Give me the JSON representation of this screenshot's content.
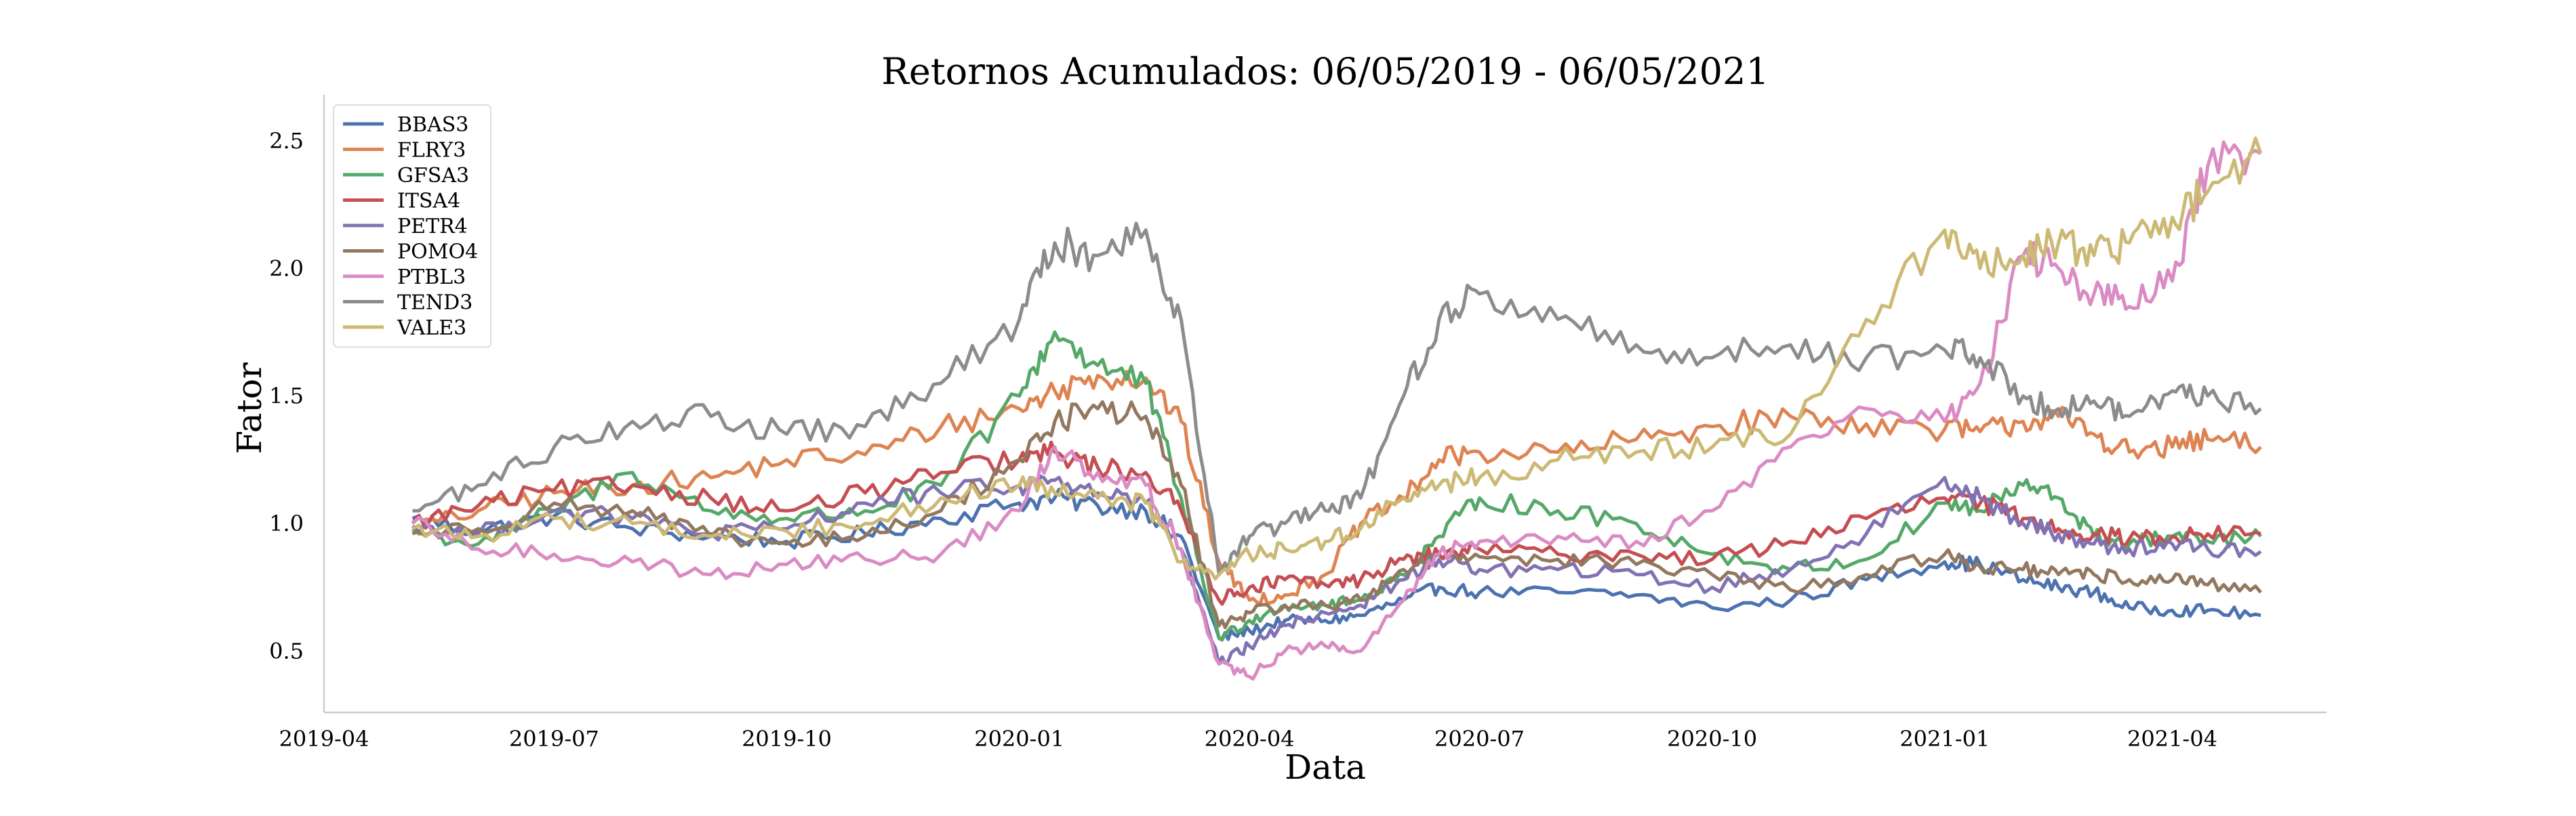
{
  "chart_data": {
    "type": "line",
    "title": "Retornos Acumulados: 06/05/2019 - 06/05/2021",
    "xlabel": "Data",
    "ylabel": "Fator",
    "x_range": [
      "2019-04-01",
      "2021-06-01"
    ],
    "ylim": [
      0.26,
      2.68
    ],
    "x_ticks": [
      {
        "label": "2019-04",
        "date": "2019-04-01"
      },
      {
        "label": "2019-07",
        "date": "2019-07-01"
      },
      {
        "label": "2019-10",
        "date": "2019-10-01"
      },
      {
        "label": "2020-01",
        "date": "2020-01-01"
      },
      {
        "label": "2020-04",
        "date": "2020-04-01"
      },
      {
        "label": "2020-07",
        "date": "2020-07-01"
      },
      {
        "label": "2020-10",
        "date": "2020-10-01"
      },
      {
        "label": "2021-01",
        "date": "2021-01-01"
      },
      {
        "label": "2021-04",
        "date": "2021-04-01"
      }
    ],
    "y_ticks": [
      0.5,
      1.0,
      1.5,
      2.0,
      2.5
    ],
    "grid": false,
    "legend_position": "top-left",
    "x": [
      "2019-05-06",
      "2019-06-01",
      "2019-07-01",
      "2019-08-01",
      "2019-09-01",
      "2019-10-01",
      "2019-11-01",
      "2019-12-01",
      "2020-01-01",
      "2020-01-15",
      "2020-02-01",
      "2020-02-20",
      "2020-03-05",
      "2020-03-20",
      "2020-04-01",
      "2020-04-15",
      "2020-05-01",
      "2020-05-15",
      "2020-06-01",
      "2020-06-15",
      "2020-07-01",
      "2020-08-01",
      "2020-09-01",
      "2020-10-01",
      "2020-11-01",
      "2020-12-01",
      "2021-01-01",
      "2021-01-15",
      "2021-02-01",
      "2021-02-15",
      "2021-03-01",
      "2021-03-15",
      "2021-04-01",
      "2021-04-15",
      "2021-05-06"
    ],
    "series": [
      {
        "name": "BBAS3",
        "color": "#4c72b0",
        "values": [
          1.02,
          0.97,
          1.03,
          0.98,
          0.95,
          0.93,
          0.96,
          1.02,
          1.08,
          1.1,
          1.07,
          1.05,
          0.95,
          0.55,
          0.58,
          0.62,
          0.62,
          0.64,
          0.7,
          0.75,
          0.73,
          0.73,
          0.72,
          0.67,
          0.7,
          0.78,
          0.85,
          0.84,
          0.78,
          0.75,
          0.73,
          0.67,
          0.66,
          0.66,
          0.64
        ]
      },
      {
        "name": "FLRY3",
        "color": "#dd8452",
        "values": [
          0.98,
          1.05,
          1.12,
          1.15,
          1.18,
          1.25,
          1.27,
          1.38,
          1.45,
          1.52,
          1.58,
          1.57,
          1.4,
          0.85,
          0.7,
          0.72,
          0.8,
          1.0,
          1.1,
          1.25,
          1.28,
          1.28,
          1.33,
          1.38,
          1.42,
          1.39,
          1.37,
          1.36,
          1.4,
          1.42,
          1.35,
          1.28,
          1.3,
          1.33,
          1.3
        ]
      },
      {
        "name": "GFSA3",
        "color": "#55a868",
        "values": [
          0.97,
          0.92,
          1.05,
          1.2,
          1.05,
          1.02,
          1.05,
          1.15,
          1.5,
          1.75,
          1.62,
          1.55,
          1.1,
          0.55,
          0.62,
          0.68,
          0.68,
          0.7,
          0.8,
          0.95,
          1.1,
          1.05,
          1.0,
          0.88,
          0.82,
          0.86,
          1.08,
          1.05,
          1.15,
          1.1,
          0.95,
          0.92,
          0.95,
          0.93,
          0.95
        ]
      },
      {
        "name": "ITSA4",
        "color": "#c44e52",
        "values": [
          1.0,
          1.07,
          1.13,
          1.15,
          1.1,
          1.05,
          1.12,
          1.2,
          1.25,
          1.28,
          1.22,
          1.2,
          1.05,
          0.7,
          0.75,
          0.78,
          0.76,
          0.78,
          0.86,
          0.88,
          0.9,
          0.88,
          0.88,
          0.86,
          0.93,
          1.02,
          1.1,
          1.08,
          1.02,
          0.98,
          0.96,
          0.94,
          0.95,
          0.96,
          0.96
        ]
      },
      {
        "name": "PETR4",
        "color": "#8172b3",
        "values": [
          0.99,
          0.96,
          1.05,
          1.02,
          0.96,
          0.98,
          1.08,
          1.12,
          1.15,
          1.17,
          1.12,
          1.08,
          0.9,
          0.45,
          0.52,
          0.6,
          0.65,
          0.68,
          0.78,
          0.86,
          0.82,
          0.82,
          0.8,
          0.75,
          0.82,
          0.96,
          1.18,
          1.1,
          1.0,
          0.96,
          0.92,
          0.9,
          0.92,
          0.9,
          0.89
        ]
      },
      {
        "name": "POMO4",
        "color": "#937860",
        "values": [
          0.96,
          0.98,
          1.08,
          1.05,
          0.95,
          0.92,
          0.95,
          1.05,
          1.25,
          1.4,
          1.45,
          1.42,
          1.15,
          0.6,
          0.65,
          0.68,
          0.68,
          0.7,
          0.82,
          0.88,
          0.87,
          0.86,
          0.84,
          0.8,
          0.74,
          0.8,
          0.88,
          0.83,
          0.82,
          0.8,
          0.8,
          0.78,
          0.78,
          0.76,
          0.73
        ]
      },
      {
        "name": "PTBL3",
        "color": "#da8bc3",
        "values": [
          1.0,
          0.9,
          0.88,
          0.85,
          0.8,
          0.84,
          0.86,
          0.88,
          1.05,
          1.3,
          1.2,
          1.15,
          0.9,
          0.45,
          0.4,
          0.5,
          0.52,
          0.5,
          0.7,
          0.88,
          0.93,
          0.95,
          0.93,
          1.05,
          1.3,
          1.45,
          1.4,
          1.55,
          2.05,
          2.0,
          1.9,
          1.85,
          1.95,
          2.4,
          2.45
        ]
      },
      {
        "name": "TEND3",
        "color": "#8c8c8c",
        "values": [
          1.05,
          1.15,
          1.3,
          1.4,
          1.42,
          1.35,
          1.38,
          1.55,
          1.8,
          2.1,
          2.05,
          2.15,
          1.8,
          0.8,
          0.95,
          1.0,
          1.05,
          1.1,
          1.5,
          1.8,
          1.9,
          1.8,
          1.7,
          1.65,
          1.7,
          1.65,
          1.68,
          1.65,
          1.5,
          1.45,
          1.48,
          1.42,
          1.52,
          1.5,
          1.45
        ]
      },
      {
        "name": "VALE3",
        "color": "#ccb974",
        "values": [
          0.98,
          0.95,
          1.02,
          1.0,
          0.95,
          0.97,
          1.0,
          1.1,
          1.15,
          1.12,
          1.1,
          1.08,
          0.85,
          0.8,
          0.88,
          0.9,
          0.93,
          0.98,
          1.1,
          1.15,
          1.18,
          1.25,
          1.28,
          1.3,
          1.35,
          1.8,
          2.15,
          2.0,
          2.05,
          2.1,
          2.05,
          2.1,
          2.2,
          2.3,
          2.45
        ]
      }
    ]
  }
}
